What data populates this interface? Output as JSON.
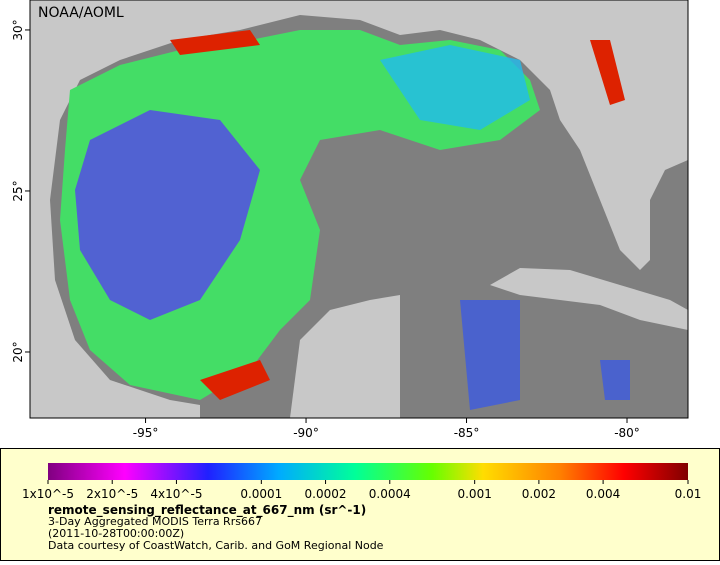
{
  "map": {
    "credit": "NOAA/AOML",
    "xlim": [
      -98.6,
      -78.1
    ],
    "ylim": [
      17.95,
      30.93
    ],
    "xticks": [
      {
        "value": -95,
        "label": "-95°"
      },
      {
        "value": -90,
        "label": "-90°"
      },
      {
        "value": -85,
        "label": "-85°"
      },
      {
        "value": -80,
        "label": "-80°"
      }
    ],
    "yticks": [
      {
        "value": 20,
        "label": "20°"
      },
      {
        "value": 25,
        "label": "25°"
      },
      {
        "value": 30,
        "label": "30°"
      }
    ]
  },
  "legend": {
    "scale": "log",
    "lim": [
      1e-05,
      0.01
    ],
    "ticks": [
      {
        "value": 1e-05,
        "label": "1x10^-5"
      },
      {
        "value": 2e-05,
        "label": "2x10^-5"
      },
      {
        "value": 4e-05,
        "label": "4x10^-5"
      },
      0.0001,
      0.0002,
      0.0004,
      0.001,
      0.002,
      0.004,
      0.01
    ],
    "variable": "remote_sensing_reflectance_at_667_nm (sr^-1)",
    "lines": [
      "3-Day Aggregated MODIS Terra Rrs667",
      "(2011-10-28T00:00:00Z)",
      "Data courtesy of CoastWatch, Carib. and GoM Regional Node"
    ]
  }
}
